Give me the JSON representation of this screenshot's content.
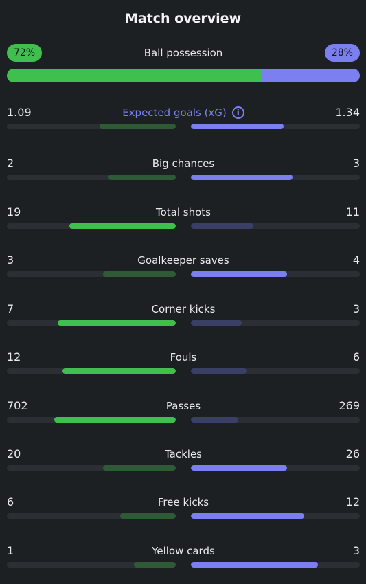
{
  "title": "Match overview",
  "possession": {
    "label": "Ball possession",
    "home": "72%",
    "away": "28%",
    "home_fraction": 0.72
  },
  "colors": {
    "home_strong": "#3fc04e",
    "home_weak": "#2e5b36",
    "away_strong": "#7b7ff0",
    "away_weak": "#3a3f66"
  },
  "stats": [
    {
      "label": "Expected goals (xG)",
      "home": "1.09",
      "away": "1.34",
      "home_fill": 0.45,
      "away_fill": 0.55,
      "accent": true,
      "info_icon": "info-icon"
    },
    {
      "label": "Big chances",
      "home": "2",
      "away": "3",
      "home_fill": 0.4,
      "away_fill": 0.6
    },
    {
      "label": "Total shots",
      "home": "19",
      "away": "11",
      "home_fill": 0.63,
      "away_fill": 0.37
    },
    {
      "label": "Goalkeeper saves",
      "home": "3",
      "away": "4",
      "home_fill": 0.43,
      "away_fill": 0.57
    },
    {
      "label": "Corner kicks",
      "home": "7",
      "away": "3",
      "home_fill": 0.7,
      "away_fill": 0.3
    },
    {
      "label": "Fouls",
      "home": "12",
      "away": "6",
      "home_fill": 0.67,
      "away_fill": 0.33
    },
    {
      "label": "Passes",
      "home": "702",
      "away": "269",
      "home_fill": 0.72,
      "away_fill": 0.28
    },
    {
      "label": "Tackles",
      "home": "20",
      "away": "26",
      "home_fill": 0.43,
      "away_fill": 0.57
    },
    {
      "label": "Free kicks",
      "home": "6",
      "away": "12",
      "home_fill": 0.33,
      "away_fill": 0.67
    },
    {
      "label": "Yellow cards",
      "home": "1",
      "away": "3",
      "home_fill": 0.25,
      "away_fill": 0.75
    }
  ]
}
